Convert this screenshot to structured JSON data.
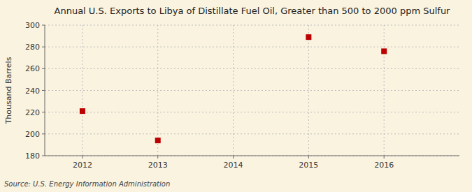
{
  "chart_data": {
    "type": "scatter",
    "title": "Annual U.S. Exports to Libya of Distillate Fuel Oil, Greater than 500 to 2000 ppm Sulfur",
    "ylabel": "Thousand Barrels",
    "source": "Source: U.S. Energy Information Administration",
    "x": [
      2012,
      2013,
      2015,
      2016
    ],
    "values": [
      221,
      194,
      289,
      276
    ],
    "xlim": [
      2011.5,
      2017.0
    ],
    "ylim": [
      180,
      300
    ],
    "xticks": [
      2012,
      2013,
      2014,
      2015,
      2016
    ],
    "yticks": [
      180,
      200,
      220,
      240,
      260,
      280,
      300
    ],
    "color": "#bb0000",
    "marker": "square",
    "grid": true
  }
}
